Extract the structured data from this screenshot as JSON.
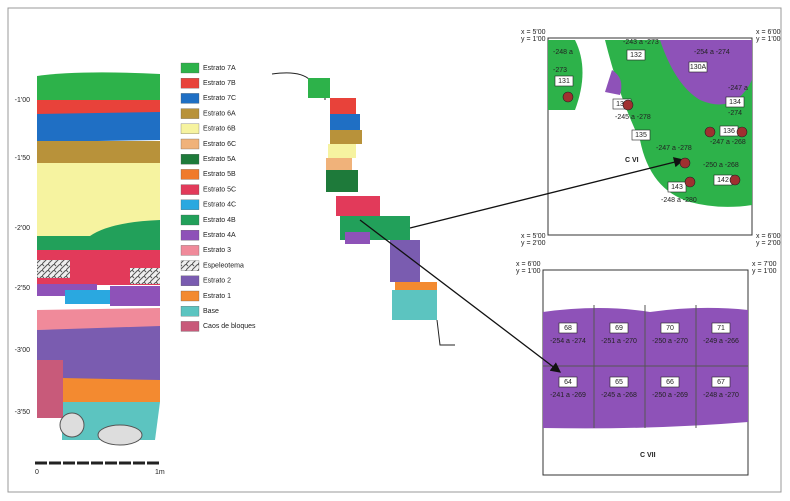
{
  "column": {
    "depths": [
      "-1'00",
      "-1'50",
      "-2'00",
      "-2'50",
      "-3'00",
      "-3'50"
    ],
    "scale": [
      "0",
      "1m"
    ]
  },
  "legend": [
    {
      "label": "Estrato 7A",
      "color": "#2db24a"
    },
    {
      "label": "Estrato 7B",
      "color": "#e8423a"
    },
    {
      "label": "Estrato 7C",
      "color": "#1f6fc4"
    },
    {
      "label": "Estrato 6A",
      "color": "#b8923a"
    },
    {
      "label": "Estrato 6B",
      "color": "#f6f3a0"
    },
    {
      "label": "Estrato 6C",
      "color": "#f0b27a"
    },
    {
      "label": "Estrato 5A",
      "color": "#1e7a3a"
    },
    {
      "label": "Estrato 5B",
      "color": "#f07a2a"
    },
    {
      "label": "Estrato 5C",
      "color": "#e23a5a"
    },
    {
      "label": "Estrato 4C",
      "color": "#2aa8e0"
    },
    {
      "label": "Estrato 4B",
      "color": "#22a05a"
    },
    {
      "label": "Estrato 4A",
      "color": "#8e52b8"
    },
    {
      "label": "Estrato 3",
      "color": "#f08a9a"
    },
    {
      "label": "Espeleotema",
      "color": "#cfcfcf"
    },
    {
      "label": "Estrato 2",
      "color": "#7a5cb0"
    },
    {
      "label": "Estrato 1",
      "color": "#f38a30"
    },
    {
      "label": "Base",
      "color": "#5cc4c0"
    },
    {
      "label": "Caos de bloques",
      "color": "#c85a7a"
    }
  ],
  "cvi": {
    "title": "C VI",
    "corners": [
      [
        "x = 5'00",
        "y = 1'00"
      ],
      [
        "x = 6'00",
        "y = 1'00"
      ],
      [
        "x = 5'00",
        "y = 2'00"
      ],
      [
        "x = 6'00",
        "y = 2'00"
      ]
    ],
    "numbers": [
      "131",
      "132",
      "130A",
      "133",
      "134",
      "135",
      "136",
      "142",
      "143"
    ],
    "ranges": [
      "-248 a",
      "-273",
      "-243 a -273",
      "-254 a -274",
      "-247 a",
      "-274",
      "-245 a -278",
      "-247 a -268",
      "-247 a -278",
      "-250 a -268",
      "-248 a -280"
    ]
  },
  "cvii": {
    "title": "C VII",
    "corners": [
      [
        "x = 6'00",
        "y = 1'00"
      ],
      [
        "x = 7'00",
        "y = 1'00"
      ]
    ],
    "squares": [
      {
        "number": "68",
        "range": "-254 a -274"
      },
      {
        "number": "69",
        "range": "-251 a -270"
      },
      {
        "number": "70",
        "range": "-250 a -270"
      },
      {
        "number": "71",
        "range": "-249 a -266"
      },
      {
        "number": "64",
        "range": "-241 a -269"
      },
      {
        "number": "65",
        "range": "-245 a -268"
      },
      {
        "number": "66",
        "range": "-250 a -269"
      },
      {
        "number": "67",
        "range": "-248 a -270"
      }
    ]
  }
}
